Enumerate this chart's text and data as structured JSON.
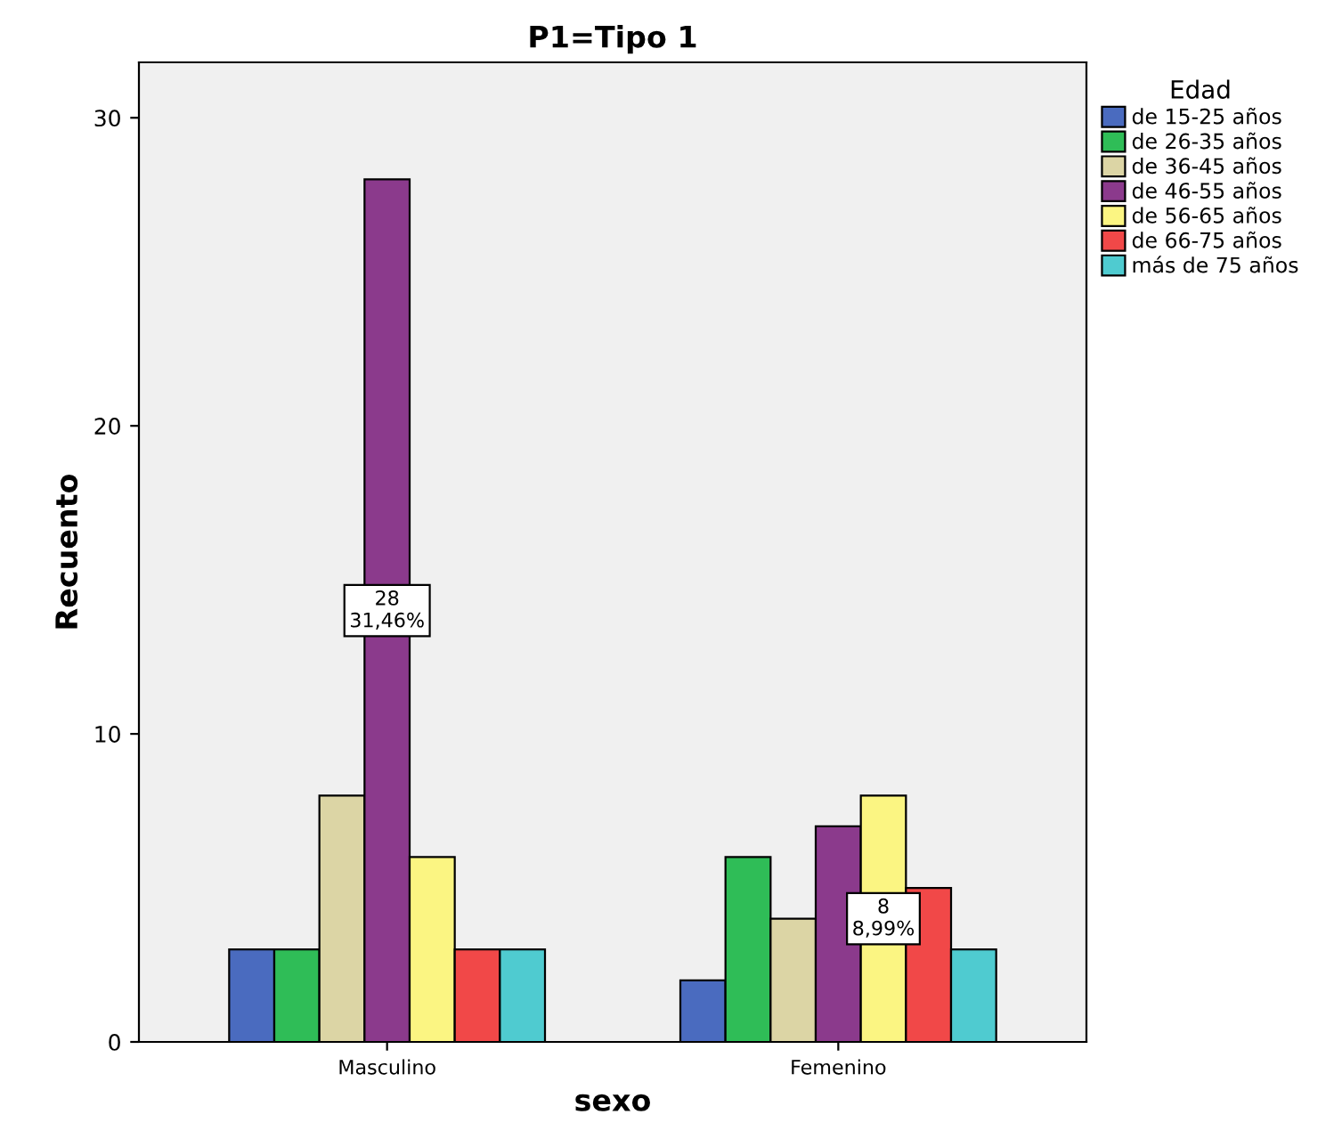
{
  "chart_data": {
    "type": "bar",
    "title": "P1=Tipo 1",
    "xlabel": "sexo",
    "ylabel": "Recuento",
    "legend_title": "Edad",
    "categories": [
      "Masculino",
      "Femenino"
    ],
    "series": [
      {
        "name": "de 15-25 años",
        "color": "#4a6bbf",
        "values": [
          3,
          2
        ]
      },
      {
        "name": "de 26-35 años",
        "color": "#2fbd57",
        "values": [
          3,
          6
        ]
      },
      {
        "name": "de 36-45 años",
        "color": "#dcd5a5",
        "values": [
          8,
          4
        ]
      },
      {
        "name": "de 46-55 años",
        "color": "#8b3a8c",
        "values": [
          28,
          7
        ],
        "value_labels": [
          "28\n31,46%",
          null
        ]
      },
      {
        "name": "de 56-65 años",
        "color": "#fbf582",
        "values": [
          6,
          8
        ],
        "value_labels": [
          null,
          "8\n8,99%"
        ]
      },
      {
        "name": "de 66-75 años",
        "color": "#f14848",
        "values": [
          3,
          5
        ]
      },
      {
        "name": "más de 75 años",
        "color": "#4fcbd0",
        "values": [
          3,
          3
        ]
      }
    ],
    "ylim": [
      0,
      31.8
    ],
    "yticks": [
      0,
      10,
      20,
      30
    ],
    "grid": false,
    "legend": "right"
  }
}
